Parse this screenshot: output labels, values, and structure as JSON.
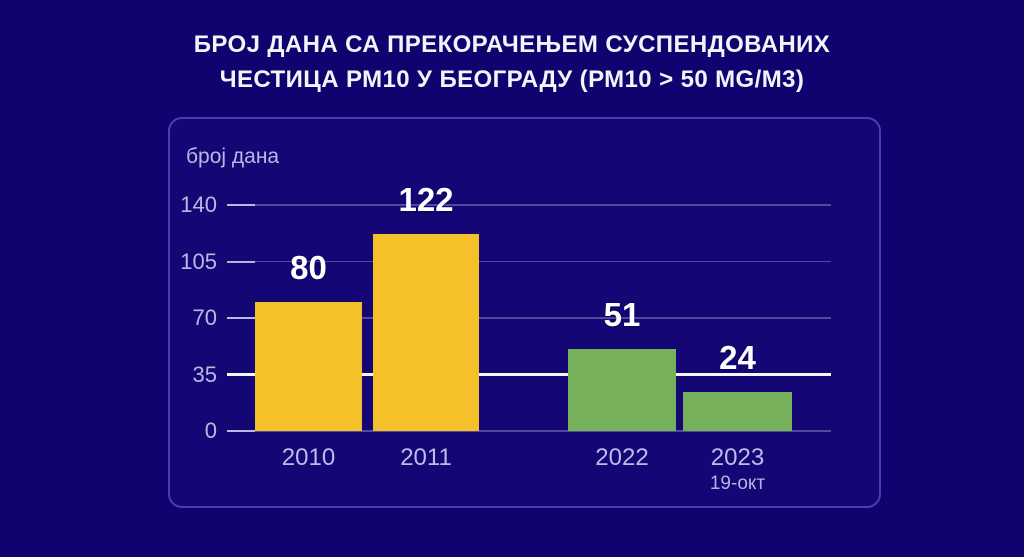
{
  "title": {
    "lines": [
      "БРОЈ ДАНА СА ПРЕКОРАЧЕЊЕМ СУСПЕНДОВАНИХ",
      "ЧЕСТИЦА РМ10 У БЕОГРАДУ (РМ10 > 50 MG/М3)"
    ],
    "full": "БРОЈ ДАНА СА ПРЕКОРАЧЕЊЕМ СУСПЕНДОВАНИХ ЧЕСТИЦА РМ10 У БЕОГРАДУ (РМ10 > 50 MG/М3)"
  },
  "chart_data": {
    "type": "bar",
    "title": "БРОЈ ДАНА СА ПРЕКОРАЧЕЊЕМ СУСПЕНДОВАНИХ ЧЕСТИЦА РМ10 У БЕОГРАДУ (РМ10 > 50 MG/М3)",
    "ylabel": "број дана",
    "xlabel": "",
    "categories": [
      "2010",
      "2011",
      "2022",
      "2023"
    ],
    "values": [
      80,
      122,
      51,
      24
    ],
    "sublabels": [
      "",
      "",
      "",
      "19-окт"
    ],
    "bar_colors": [
      "#f5c12b",
      "#f5c12b",
      "#76b05a",
      "#76b05a"
    ],
    "yticks": [
      0,
      35,
      70,
      105,
      140
    ],
    "ylim": [
      0,
      140
    ],
    "grid": true,
    "legend": "none",
    "reference_line": {
      "value": 35,
      "color": "#ffffff"
    }
  },
  "colors": {
    "background": "#10026f",
    "panel_border": "#4343b0",
    "grid": "#9e9eda",
    "reference_line": "#f6f6fb",
    "axis_text": "#b9b9e6",
    "title_text": "#f3f3f8",
    "value_text": "#ffffff",
    "bar_yellow": "#f5c12b",
    "bar_green": "#76b05a"
  }
}
